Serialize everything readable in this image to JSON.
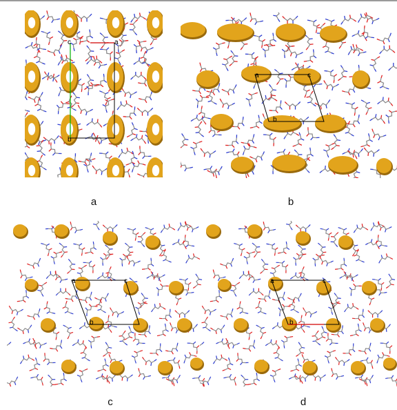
{
  "panels": [
    {
      "id": "a",
      "caption": "a",
      "axis_labels": [
        "c",
        "a",
        "b"
      ]
    },
    {
      "id": "b",
      "caption": "b",
      "axis_labels": [
        "a",
        "c",
        "b"
      ]
    },
    {
      "id": "c",
      "caption": "c",
      "axis_labels": [
        "a",
        "c",
        "b"
      ]
    },
    {
      "id": "d",
      "caption": "d",
      "axis_labels": [
        "a",
        "c",
        "b"
      ]
    }
  ],
  "colors": {
    "void_surface": "#e2a41c",
    "void_shadow": "#9a6a0c",
    "carbon": "#8c8c8c",
    "nitrogen": "#2f3fd0",
    "oxygen": "#e02020",
    "cell_edge": "#000000",
    "a_axis": "#d00000",
    "b_axis": "#00b000"
  }
}
